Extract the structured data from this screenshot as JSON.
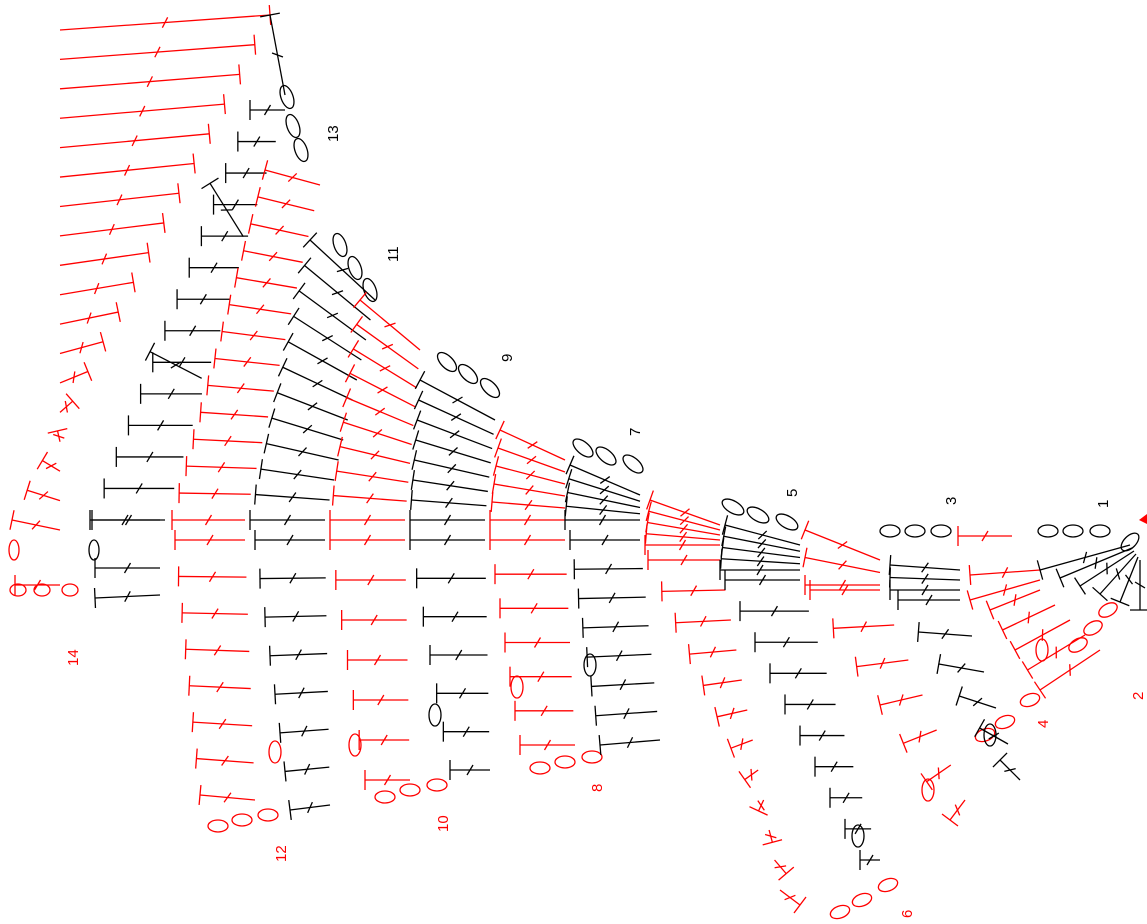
{
  "colors": {
    "black": "#000000",
    "red": "#ff0000",
    "background": "#ffffff"
  },
  "row_labels": [
    {
      "text": "1",
      "color": "black"
    },
    {
      "text": "2",
      "color": "red"
    },
    {
      "text": "3",
      "color": "black"
    },
    {
      "text": "4",
      "color": "red"
    },
    {
      "text": "5",
      "color": "black"
    },
    {
      "text": "6",
      "color": "red"
    },
    {
      "text": "7",
      "color": "black"
    },
    {
      "text": "8",
      "color": "red"
    },
    {
      "text": "9",
      "color": "black"
    },
    {
      "text": "10",
      "color": "red"
    },
    {
      "text": "11",
      "color": "black"
    },
    {
      "text": "12",
      "color": "red"
    },
    {
      "text": "13",
      "color": "black"
    },
    {
      "text": "14",
      "color": "red"
    }
  ]
}
